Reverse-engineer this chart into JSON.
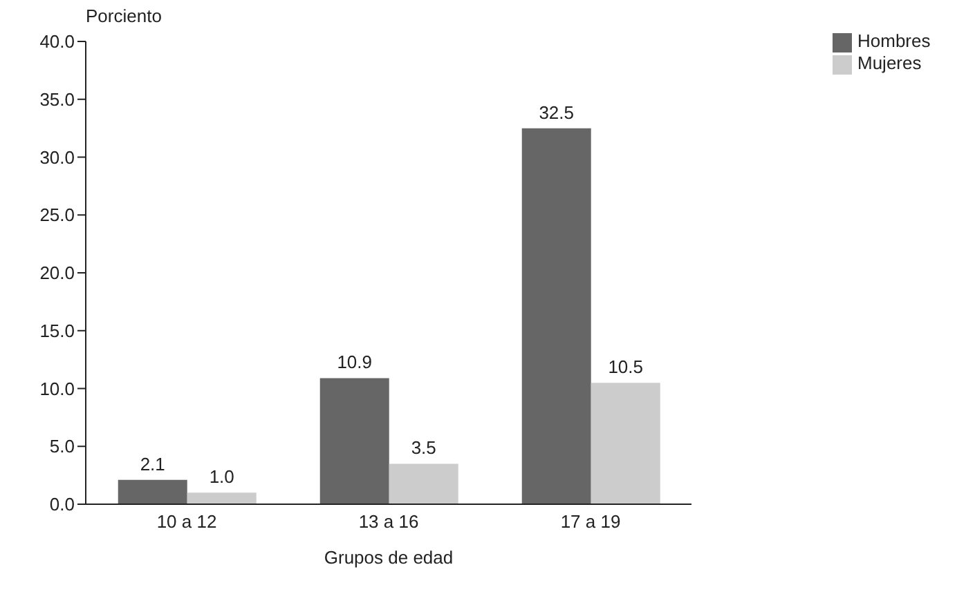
{
  "chart_data": {
    "type": "bar",
    "ylabel": "Porciento",
    "xlabel": "Grupos de edad",
    "categories": [
      "10 a 12",
      "13 a 16",
      "17 a 19"
    ],
    "series": [
      {
        "name": "Hombres",
        "color": "#666666",
        "values": [
          2.1,
          10.9,
          32.5
        ],
        "value_labels": [
          "2.1",
          "10.9",
          "32.5"
        ]
      },
      {
        "name": "Mujeres",
        "color": "#cccccc",
        "values": [
          1.0,
          3.5,
          10.5
        ],
        "value_labels": [
          "1.0",
          "3.5",
          "10.5"
        ]
      }
    ],
    "ylim": [
      0,
      40
    ],
    "yticks": [
      {
        "value": 0,
        "label": "0.0"
      },
      {
        "value": 5,
        "label": "5.0"
      },
      {
        "value": 10,
        "label": "10.0"
      },
      {
        "value": 15,
        "label": "15.0"
      },
      {
        "value": 20,
        "label": "20.0"
      },
      {
        "value": 25,
        "label": "25.0"
      },
      {
        "value": 30,
        "label": "30.0"
      },
      {
        "value": 35,
        "label": "35.0"
      },
      {
        "value": 40,
        "label": "40.0"
      }
    ],
    "grid": false,
    "legend": "top right"
  }
}
